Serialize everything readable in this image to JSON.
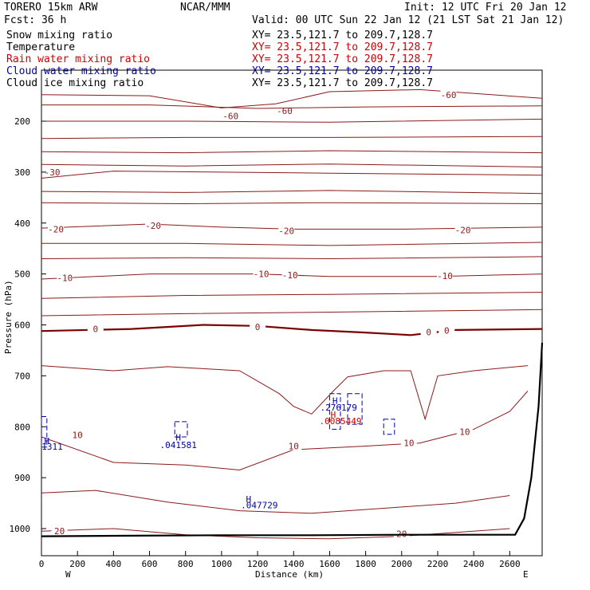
{
  "header": {
    "model": "TORERO  15km ARW",
    "center": "NCAR/MMM",
    "init": "Init: 12 UTC Fri 20 Jan 12",
    "fcst": "Fcst:   36 h",
    "valid": "Valid: 00 UTC Sun 22 Jan 12 (21 LST Sat 21 Jan 12)"
  },
  "legend": [
    {
      "label": "Snow mixing ratio",
      "xy": "XY=  23.5,121.7 to 209.7,128.7",
      "color": "#000000",
      "xy_color": "#000000"
    },
    {
      "label": "Temperature",
      "xy": "XY=  23.5,121.7 to 209.7,128.7",
      "color": "#000000",
      "xy_color": "#cc0000"
    },
    {
      "label": "Rain water mixing ratio",
      "xy": "XY=  23.5,121.7 to 209.7,128.7",
      "color": "#cc0000",
      "xy_color": "#cc0000"
    },
    {
      "label": "Cloud water mixing ratio",
      "xy": "XY=  23.5,121.7 to 209.7,128.7",
      "color": "#0000aa",
      "xy_color": "#0000aa"
    },
    {
      "label": "Cloud ice mixing ratio",
      "xy": "XY=  23.5,121.7 to 209.7,128.7",
      "color": "#000000",
      "xy_color": "#000000"
    }
  ],
  "colors": {
    "temperature": "#8b1a1a",
    "freezing": "#7a0000",
    "cloud_water": "#0000aa",
    "rain": "#cc0000",
    "terrain": "#000000"
  },
  "chart_data": {
    "type": "contour",
    "xlabel": "Distance (km)",
    "ylabel": "Pressure (hPa)",
    "xlim": [
      0,
      2780
    ],
    "ylim": [
      1045,
      100
    ],
    "x_ticks": [
      0,
      200,
      400,
      600,
      800,
      1000,
      1200,
      1400,
      1600,
      1800,
      2000,
      2200,
      2400,
      2600
    ],
    "x_tick_labels": [
      "0",
      "200",
      "400",
      "600",
      "800",
      "1000",
      "1200",
      "1400",
      "1600",
      "1800",
      "2000",
      "2200",
      "2400",
      "2600"
    ],
    "y_ticks": [
      200,
      300,
      400,
      500,
      600,
      700,
      800,
      900,
      1000
    ],
    "y_tick_labels": [
      "200",
      "300",
      "400",
      "500",
      "600",
      "700",
      "800",
      "900",
      "1000"
    ],
    "left_end": "W",
    "right_end": "E",
    "temperature_isotherms": [
      {
        "label": "-60",
        "label_at": [
          [
            1050,
            190
          ],
          [
            1350,
            180
          ],
          [
            2260,
            148
          ]
        ],
        "points": [
          [
            0,
            148
          ],
          [
            600,
            150
          ],
          [
            1000,
            174
          ],
          [
            1300,
            166
          ],
          [
            1600,
            142
          ],
          [
            2100,
            138
          ],
          [
            2780,
            155
          ]
        ]
      },
      {
        "label": "",
        "points": [
          [
            0,
            168
          ],
          [
            600,
            168
          ],
          [
            1200,
            175
          ],
          [
            1800,
            172
          ],
          [
            2780,
            170
          ]
        ]
      },
      {
        "label": "",
        "points": [
          [
            0,
            200
          ],
          [
            800,
            200
          ],
          [
            1600,
            202
          ],
          [
            2780,
            196
          ]
        ]
      },
      {
        "label": "",
        "points": [
          [
            0,
            234
          ],
          [
            800,
            232
          ],
          [
            1600,
            232
          ],
          [
            2780,
            230
          ]
        ]
      },
      {
        "label": "",
        "points": [
          [
            0,
            260
          ],
          [
            800,
            262
          ],
          [
            1600,
            258
          ],
          [
            2780,
            262
          ]
        ]
      },
      {
        "label": "",
        "points": [
          [
            0,
            285
          ],
          [
            800,
            288
          ],
          [
            1600,
            284
          ],
          [
            2780,
            290
          ]
        ]
      },
      {
        "label": "-30",
        "label_at": [
          [
            60,
            300
          ]
        ],
        "points": [
          [
            0,
            312
          ],
          [
            400,
            298
          ],
          [
            1000,
            300
          ],
          [
            1600,
            302
          ],
          [
            2780,
            306
          ]
        ]
      },
      {
        "label": "",
        "points": [
          [
            0,
            338
          ],
          [
            800,
            340
          ],
          [
            1600,
            336
          ],
          [
            2780,
            342
          ]
        ]
      },
      {
        "label": "",
        "points": [
          [
            0,
            360
          ],
          [
            800,
            362
          ],
          [
            1600,
            360
          ],
          [
            2780,
            362
          ]
        ]
      },
      {
        "label": "-20",
        "label_at": [
          [
            80,
            412
          ],
          [
            620,
            405
          ],
          [
            1360,
            415
          ],
          [
            2340,
            414
          ]
        ],
        "points": [
          [
            0,
            410
          ],
          [
            600,
            402
          ],
          [
            1000,
            408
          ],
          [
            1400,
            412
          ],
          [
            2000,
            412
          ],
          [
            2780,
            408
          ]
        ]
      },
      {
        "label": "",
        "points": [
          [
            0,
            440
          ],
          [
            800,
            440
          ],
          [
            1600,
            444
          ],
          [
            2780,
            438
          ]
        ]
      },
      {
        "label": "",
        "points": [
          [
            0,
            470
          ],
          [
            800,
            468
          ],
          [
            1600,
            470
          ],
          [
            2780,
            466
          ]
        ]
      },
      {
        "label": "-10",
        "label_at": [
          [
            130,
            508
          ],
          [
            1220,
            500
          ],
          [
            1380,
            502
          ],
          [
            2240,
            504
          ]
        ],
        "points": [
          [
            0,
            510
          ],
          [
            600,
            500
          ],
          [
            1200,
            500
          ],
          [
            1600,
            505
          ],
          [
            2200,
            505
          ],
          [
            2780,
            500
          ]
        ]
      },
      {
        "label": "",
        "points": [
          [
            0,
            548
          ],
          [
            800,
            542
          ],
          [
            1600,
            540
          ],
          [
            2780,
            536
          ]
        ]
      },
      {
        "label": "",
        "points": [
          [
            0,
            582
          ],
          [
            800,
            578
          ],
          [
            1600,
            575
          ],
          [
            2780,
            570
          ]
        ]
      },
      {
        "label": "0",
        "label_at": [
          [
            300,
            608
          ],
          [
            1200,
            604
          ],
          [
            2150,
            614
          ],
          [
            2250,
            611
          ]
        ],
        "freezing": true,
        "points": [
          [
            0,
            612
          ],
          [
            500,
            608
          ],
          [
            900,
            600
          ],
          [
            1200,
            602
          ],
          [
            1500,
            610
          ],
          [
            1800,
            615
          ],
          [
            2050,
            620
          ],
          [
            2300,
            610
          ],
          [
            2780,
            608
          ]
        ]
      },
      {
        "label": "",
        "points": [
          [
            0,
            680
          ],
          [
            400,
            690
          ],
          [
            700,
            682
          ],
          [
            1100,
            690
          ],
          [
            1320,
            735
          ],
          [
            1400,
            760
          ],
          [
            1500,
            775
          ],
          [
            1620,
            730
          ],
          [
            1700,
            702
          ],
          [
            1900,
            690
          ],
          [
            2050,
            690
          ],
          [
            2130,
            785
          ],
          [
            2200,
            700
          ],
          [
            2400,
            690
          ],
          [
            2700,
            680
          ]
        ]
      },
      {
        "label": "10",
        "label_at": [
          [
            200,
            816
          ],
          [
            1400,
            838
          ],
          [
            2040,
            832
          ],
          [
            2350,
            810
          ]
        ],
        "points": [
          [
            0,
            820
          ],
          [
            400,
            870
          ],
          [
            800,
            875
          ],
          [
            1100,
            885
          ],
          [
            1400,
            845
          ],
          [
            1800,
            838
          ],
          [
            2100,
            832
          ],
          [
            2400,
            805
          ],
          [
            2600,
            770
          ],
          [
            2700,
            730
          ]
        ]
      },
      {
        "label": "",
        "points": [
          [
            0,
            930
          ],
          [
            300,
            925
          ],
          [
            700,
            948
          ],
          [
            1100,
            965
          ],
          [
            1500,
            970
          ],
          [
            1900,
            960
          ],
          [
            2300,
            950
          ],
          [
            2600,
            935
          ]
        ]
      },
      {
        "label": "20",
        "label_at": [
          [
            100,
            1005
          ],
          [
            2000,
            1010
          ]
        ],
        "points": [
          [
            0,
            1005
          ],
          [
            400,
            1000
          ],
          [
            800,
            1012
          ],
          [
            1200,
            1018
          ],
          [
            1600,
            1020
          ],
          [
            2000,
            1015
          ],
          [
            2600,
            1000
          ]
        ]
      }
    ],
    "terrain_pressure": [
      [
        0,
        1015
      ],
      [
        500,
        1014
      ],
      [
        1000,
        1013
      ],
      [
        1500,
        1013
      ],
      [
        2000,
        1012
      ],
      [
        2500,
        1012
      ],
      [
        2630,
        1012
      ],
      [
        2680,
        980
      ],
      [
        2720,
        900
      ],
      [
        2760,
        760
      ],
      [
        2780,
        635
      ]
    ],
    "annotations": [
      {
        "text": "H",
        "x": 30,
        "y": 834,
        "color": "#0000aa"
      },
      {
        "text": "1311",
        "x": 60,
        "y": 845,
        "color": "#0000aa"
      },
      {
        "text": "H",
        "x": 760,
        "y": 827,
        "color": "#0000aa"
      },
      {
        "text": ".041581",
        "x": 760,
        "y": 842,
        "color": "#0000aa"
      },
      {
        "text": "H",
        "x": 1630,
        "y": 755,
        "color": "#0000aa"
      },
      {
        "text": ".276179",
        "x": 1650,
        "y": 768,
        "color": "#0000aa"
      },
      {
        "text": "H",
        "x": 1620,
        "y": 782,
        "color": "#cc0000"
      },
      {
        "text": ".0085449",
        "x": 1660,
        "y": 795,
        "color": "#cc0000"
      },
      {
        "text": "H",
        "x": 1150,
        "y": 948,
        "color": "#0000aa"
      },
      {
        "text": ".047729",
        "x": 1210,
        "y": 960,
        "color": "#0000aa"
      }
    ],
    "cloud_water_contours": [
      [
        [
          0,
          780
        ],
        [
          30,
          780
        ],
        [
          30,
          840
        ],
        [
          0,
          840
        ]
      ],
      [
        [
          740,
          790
        ],
        [
          810,
          790
        ],
        [
          810,
          820
        ],
        [
          740,
          820
        ]
      ],
      [
        [
          1600,
          735
        ],
        [
          1660,
          735
        ],
        [
          1660,
          805
        ],
        [
          1600,
          805
        ]
      ],
      [
        [
          1700,
          735
        ],
        [
          1780,
          735
        ],
        [
          1780,
          795
        ],
        [
          1700,
          795
        ]
      ],
      [
        [
          1900,
          785
        ],
        [
          1960,
          785
        ],
        [
          1960,
          815
        ],
        [
          1900,
          815
        ]
      ]
    ]
  }
}
